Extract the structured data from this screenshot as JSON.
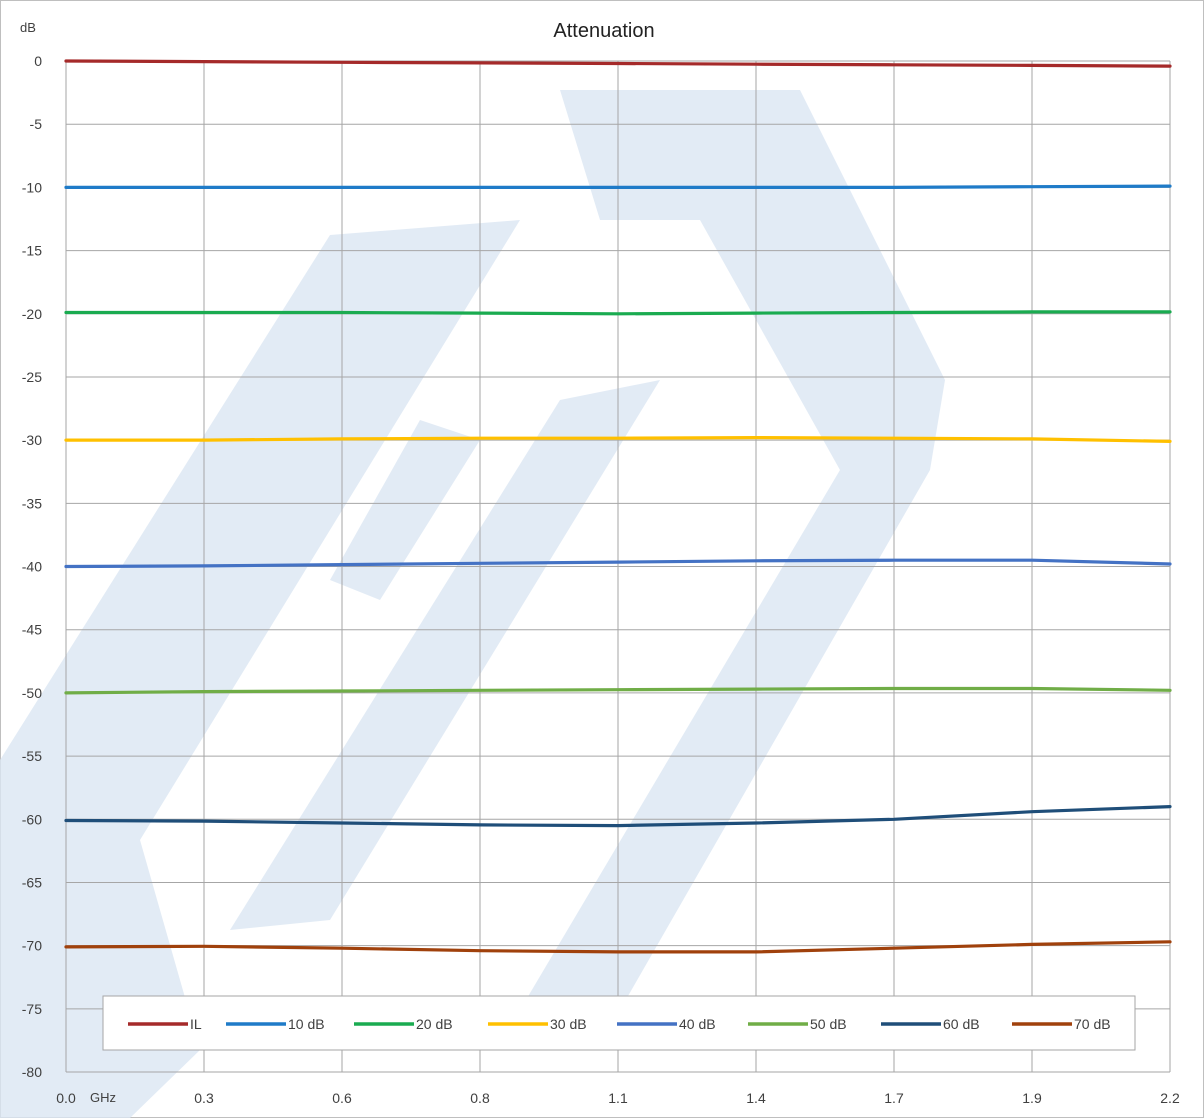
{
  "chart_data": {
    "type": "line",
    "title": "Attenuation",
    "ylabel": "dB",
    "xlabel": "GHz",
    "xlim": [
      0,
      2.2
    ],
    "ylim": [
      -80,
      0
    ],
    "yticks": [
      0,
      -5,
      -10,
      -15,
      -20,
      -25,
      -30,
      -35,
      -40,
      -45,
      -50,
      -55,
      -60,
      -65,
      -70,
      -75,
      -80
    ],
    "ytick_labels": [
      "0",
      "-5",
      "-10",
      "-15",
      "-20",
      "-25",
      "-30",
      "-35",
      "-40",
      "-45",
      "-50",
      "-55",
      "-60",
      "-65",
      "-70",
      "-75",
      "-80"
    ],
    "xticks": [
      0,
      0.275,
      0.55,
      0.825,
      1.1,
      1.375,
      1.65,
      1.925,
      2.2
    ],
    "xtick_labels": [
      "0.0",
      "0.3",
      "0.6",
      "0.8",
      "1.1",
      "1.4",
      "1.7",
      "1.9",
      "2.2"
    ],
    "grid": true,
    "legend_position": "bottom",
    "x": [
      0,
      0.275,
      0.55,
      0.825,
      1.1,
      1.375,
      1.65,
      1.925,
      2.2
    ],
    "series": [
      {
        "name": "IL",
        "color": "#a52a2a",
        "values": [
          0,
          -0.05,
          -0.1,
          -0.15,
          -0.2,
          -0.25,
          -0.3,
          -0.35,
          -0.4
        ]
      },
      {
        "name": "10 dB",
        "color": "#1f7bc8",
        "values": [
          -10,
          -10,
          -10,
          -10,
          -10,
          -10,
          -10,
          -9.95,
          -9.9
        ]
      },
      {
        "name": "20 dB",
        "color": "#1aab50",
        "values": [
          -19.9,
          -19.9,
          -19.9,
          -19.95,
          -20,
          -19.95,
          -19.9,
          -19.85,
          -19.85
        ]
      },
      {
        "name": "30 dB",
        "color": "#ffc000",
        "values": [
          -30,
          -30,
          -29.9,
          -29.85,
          -29.85,
          -29.8,
          -29.85,
          -29.9,
          -30.1
        ]
      },
      {
        "name": "40 dB",
        "color": "#4472c4",
        "values": [
          -40,
          -39.95,
          -39.85,
          -39.75,
          -39.65,
          -39.55,
          -39.5,
          -39.5,
          -39.8
        ]
      },
      {
        "name": "50 dB",
        "color": "#70ad47",
        "values": [
          -50,
          -49.9,
          -49.85,
          -49.8,
          -49.75,
          -49.7,
          -49.65,
          -49.65,
          -49.8
        ]
      },
      {
        "name": "60 dB",
        "color": "#1f4e79",
        "values": [
          -60.1,
          -60.15,
          -60.3,
          -60.45,
          -60.5,
          -60.3,
          -60.0,
          -59.4,
          -59.0
        ]
      },
      {
        "name": "70 dB",
        "color": "#a0410c",
        "values": [
          -70.1,
          -70.05,
          -70.2,
          -70.4,
          -70.5,
          -70.5,
          -70.2,
          -69.9,
          -69.7
        ]
      }
    ]
  },
  "watermark": {
    "color": "#dbe6f3"
  }
}
